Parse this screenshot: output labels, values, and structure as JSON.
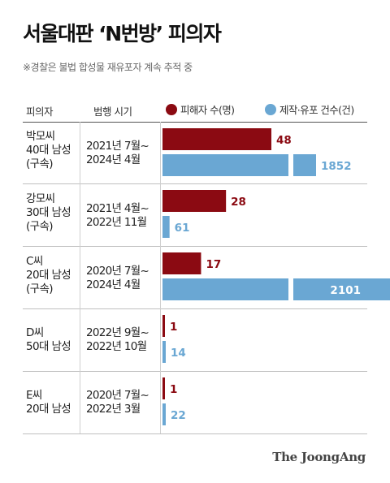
{
  "header": {
    "title": "서울대판 ‘N번방’ 피의자",
    "subtitle": "※경찰은 불법 합성물 재유포자 계속 추적 중",
    "col_victim": "피의자",
    "col_period": "범행 시기"
  },
  "colors": {
    "victims": "#8b0a12",
    "videos": "#6aa7d3"
  },
  "brand": "The JoongAng",
  "chart_data": {
    "type": "bar",
    "orientation": "horizontal",
    "title": "서울대판 ‘N번방’ 피의자",
    "subtitle": "※경찰은 불법 합성물 재유포자 계속 추적 중",
    "categories": [
      "박모씨",
      "강모씨",
      "C씨",
      "D씨",
      "E씨"
    ],
    "rows": [
      {
        "suspect": [
          "박모씨",
          "40대 남성",
          "(구속)"
        ],
        "period": [
          "2021년 7월~",
          "2024년 4월"
        ]
      },
      {
        "suspect": [
          "강모씨",
          "30대 남성",
          "(구속)"
        ],
        "period": [
          "2021년 4월~",
          "2022년 11월"
        ]
      },
      {
        "suspect": [
          "C씨",
          "20대 남성",
          "(구속)"
        ],
        "period": [
          "2020년 7월~",
          "2024년 4월"
        ]
      },
      {
        "suspect": [
          "D씨",
          "50대 남성"
        ],
        "period": [
          "2022년 9월~",
          "2022년 10월"
        ]
      },
      {
        "suspect": [
          "E씨",
          "20대 남성"
        ],
        "period": [
          "2020년 7월~",
          "2022년 3월"
        ]
      }
    ],
    "series": [
      {
        "name": "피해자 수(명)",
        "values": [
          48,
          28,
          17,
          1,
          1
        ],
        "color": "#8b0a12"
      },
      {
        "name": "제작·유포 건수(건)",
        "values": [
          1852,
          61,
          2101,
          14,
          22
        ],
        "color": "#6aa7d3"
      }
    ],
    "legend": "top",
    "grid": false
  }
}
